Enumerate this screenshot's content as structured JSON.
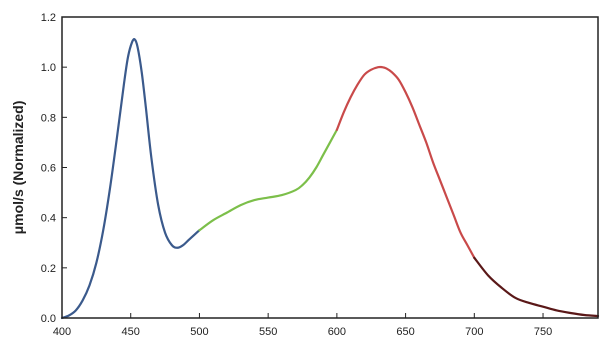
{
  "chart_data": {
    "type": "line",
    "title": "",
    "xlabel": "",
    "ylabel": "μmol/s (Normalized)",
    "xlim": [
      400,
      790
    ],
    "ylim": [
      0,
      1.2
    ],
    "x_ticks": [
      "400",
      "450",
      "500",
      "550",
      "600",
      "650",
      "700",
      "750"
    ],
    "x_tick_values": [
      400,
      450,
      500,
      550,
      600,
      650,
      700,
      750
    ],
    "y_ticks": [
      "0.0",
      "0.2",
      "0.4",
      "0.6",
      "0.8",
      "1.0",
      "1.2"
    ],
    "y_tick_values": [
      0,
      0.2,
      0.4,
      0.6,
      0.8,
      1.0,
      1.2
    ],
    "grid": false,
    "legend": "none",
    "series": [
      {
        "color": "#3b5a8c",
        "x": [
          400,
          405,
          410,
          415,
          420,
          425,
          430,
          435,
          440,
          445,
          448,
          451,
          453,
          455,
          458,
          461,
          465,
          470,
          475,
          480,
          484,
          488,
          492,
          496,
          500
        ],
        "y": [
          0.0,
          0.01,
          0.03,
          0.07,
          0.13,
          0.22,
          0.35,
          0.52,
          0.72,
          0.93,
          1.04,
          1.1,
          1.11,
          1.08,
          0.98,
          0.84,
          0.64,
          0.45,
          0.34,
          0.29,
          0.28,
          0.29,
          0.31,
          0.33,
          0.35
        ]
      },
      {
        "color": "#7cbf4a",
        "x": [
          500,
          510,
          520,
          530,
          540,
          550,
          560,
          570,
          575,
          580,
          585,
          590,
          595,
          600
        ],
        "y": [
          0.35,
          0.39,
          0.42,
          0.45,
          0.47,
          0.48,
          0.49,
          0.51,
          0.53,
          0.56,
          0.6,
          0.65,
          0.7,
          0.75
        ]
      },
      {
        "color": "#c94a4a",
        "x": [
          600,
          605,
          610,
          615,
          620,
          625,
          630,
          633,
          636,
          640,
          645,
          650,
          655,
          660,
          665,
          670,
          675,
          680,
          685,
          690,
          695,
          700
        ],
        "y": [
          0.75,
          0.82,
          0.88,
          0.93,
          0.97,
          0.99,
          1.0,
          1.0,
          0.995,
          0.98,
          0.95,
          0.9,
          0.84,
          0.77,
          0.7,
          0.62,
          0.55,
          0.48,
          0.41,
          0.34,
          0.29,
          0.24
        ]
      },
      {
        "color": "#5a1818",
        "x": [
          700,
          710,
          720,
          730,
          740,
          750,
          760,
          770,
          780,
          790
        ],
        "y": [
          0.24,
          0.17,
          0.12,
          0.08,
          0.06,
          0.045,
          0.03,
          0.02,
          0.012,
          0.008
        ]
      }
    ]
  }
}
